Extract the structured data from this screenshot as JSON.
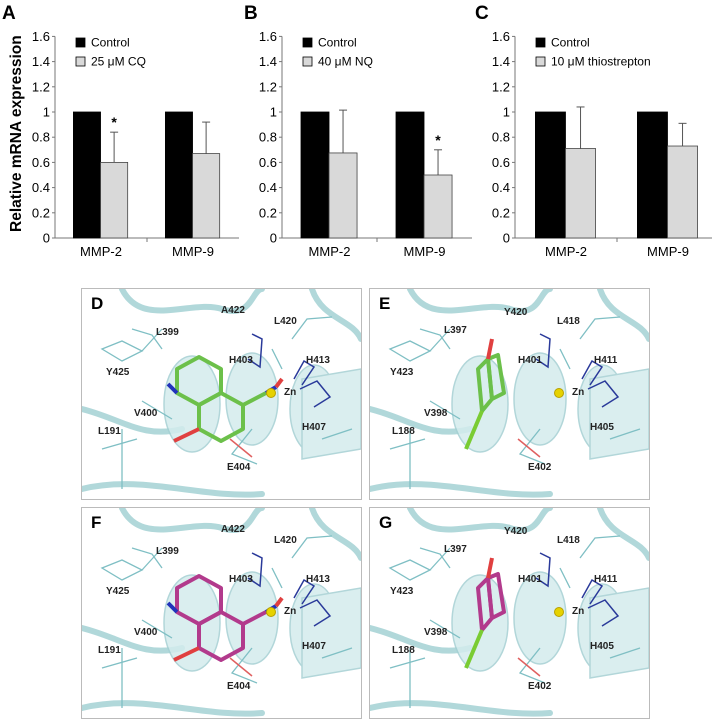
{
  "y_axis_label": "Relative mRNA expression",
  "chart_data": [
    {
      "panel": "A",
      "type": "bar",
      "categories": [
        "MMP-2",
        "MMP-9"
      ],
      "series": [
        {
          "name": "Control",
          "values": [
            1,
            1
          ],
          "color": "#000000"
        },
        {
          "name": "25 μM CQ",
          "values": [
            0.6,
            0.67
          ],
          "error_upper": [
            0.84,
            0.92
          ],
          "color": "#d9d9d9"
        }
      ],
      "significance": [
        "*",
        ""
      ],
      "ylim": [
        0,
        1.6
      ],
      "yticks": [
        "0",
        "0.2",
        "0.4",
        "0.6",
        "0.8",
        "1",
        "1.2",
        "1.4",
        "1.6"
      ],
      "legend": "top-left"
    },
    {
      "panel": "B",
      "type": "bar",
      "categories": [
        "MMP-2",
        "MMP-9"
      ],
      "series": [
        {
          "name": "Control",
          "values": [
            1,
            1
          ],
          "color": "#000000"
        },
        {
          "name": "40 μM NQ",
          "values": [
            0.675,
            0.5
          ],
          "error_upper": [
            1.015,
            0.7
          ],
          "color": "#d9d9d9"
        }
      ],
      "significance": [
        "",
        "*"
      ],
      "ylim": [
        0,
        1.6
      ],
      "yticks": [
        "0",
        "0.2",
        "0.4",
        "0.6",
        "0.8",
        "1",
        "1.2",
        "1.4",
        "1.6"
      ],
      "legend": "top-left"
    },
    {
      "panel": "C",
      "type": "bar",
      "categories": [
        "MMP-2",
        "MMP-9"
      ],
      "series": [
        {
          "name": "Control",
          "values": [
            1,
            1
          ],
          "color": "#000000"
        },
        {
          "name": "10 μM thiostrepton",
          "values": [
            0.71,
            0.73
          ],
          "error_upper": [
            1.04,
            0.91
          ],
          "color": "#d9d9d9"
        }
      ],
      "significance": [
        "",
        ""
      ],
      "ylim": [
        0,
        1.6
      ],
      "yticks": [
        "0",
        "0.2",
        "0.4",
        "0.6",
        "0.8",
        "1",
        "1.2",
        "1.4",
        "1.6"
      ],
      "legend": "top-left"
    }
  ],
  "docking_panels": [
    {
      "letter": "D",
      "ligand_color": "#6cc04a",
      "residues": [
        "A422",
        "L420",
        "L399",
        "H403",
        "H413",
        "Y425",
        "Zn",
        "V400",
        "L191",
        "H407",
        "E404"
      ]
    },
    {
      "letter": "E",
      "ligand_color": "#6cc04a",
      "residues": [
        "Y420",
        "L418",
        "L397",
        "H401",
        "H411",
        "Y423",
        "Zn",
        "V398",
        "L188",
        "H405",
        "E402"
      ]
    },
    {
      "letter": "F",
      "ligand_color": "#b23a8c",
      "residues": [
        "A422",
        "L420",
        "L399",
        "H403",
        "H413",
        "Y425",
        "Zn",
        "V400",
        "L191",
        "H407",
        "E404"
      ]
    },
    {
      "letter": "G",
      "ligand_color": "#b23a8c",
      "residues": [
        "Y420",
        "L418",
        "L397",
        "H401",
        "H411",
        "Y423",
        "Zn",
        "V398",
        "L188",
        "H405",
        "E402"
      ]
    }
  ]
}
